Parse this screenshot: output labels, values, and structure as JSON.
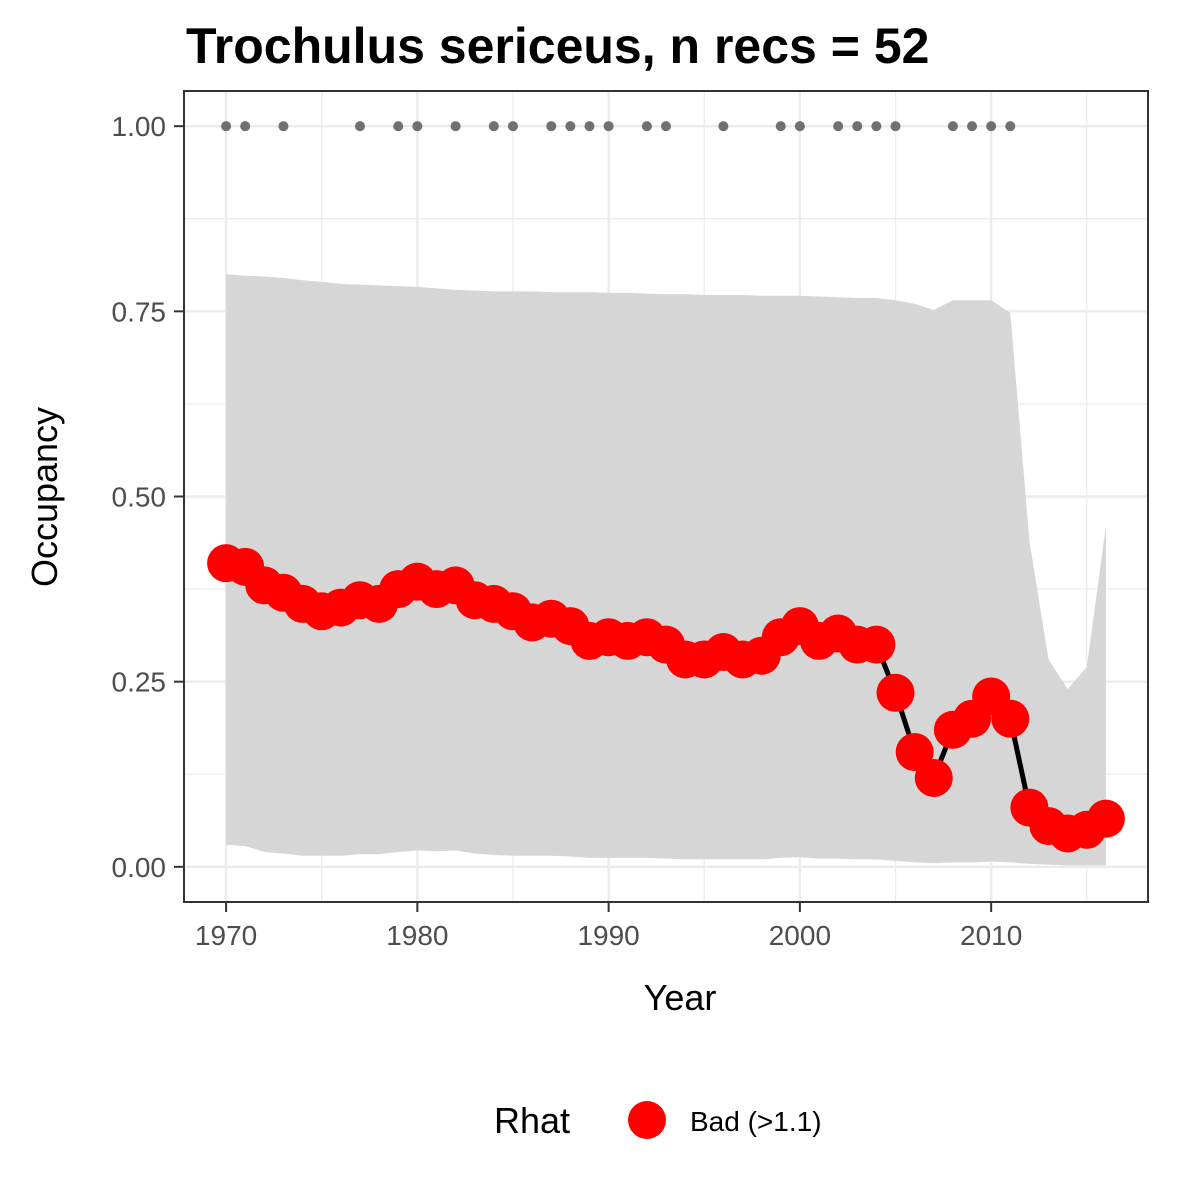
{
  "chart_data": {
    "type": "line",
    "title": "Trochulus sericeus, n recs = 52",
    "xlabel": "Year",
    "ylabel": "Occupancy",
    "xlim": [
      1967.8,
      2018.2
    ],
    "ylim": [
      -0.0475,
      1.0475
    ],
    "x_ticks": [
      1970,
      1980,
      1990,
      2000,
      2010
    ],
    "x_tick_labels": [
      "1970",
      "1980",
      "1990",
      "2000",
      "2010"
    ],
    "y_ticks": [
      0,
      0.25,
      0.5,
      0.75,
      1.0
    ],
    "y_tick_labels": [
      "0.00",
      "0.25",
      "0.50",
      "0.75",
      "1.00"
    ],
    "grid": true,
    "colors": {
      "point": "#ff0000",
      "line": "#000000",
      "ribbon": "#d6d6d6",
      "record": "#707070",
      "grid": "#ebebeb",
      "panel_border": "#333333"
    },
    "series": [
      {
        "years": [
          1970,
          1971,
          1972,
          1973,
          1974,
          1975,
          1976,
          1977,
          1978,
          1979,
          1980,
          1981,
          1982,
          1983,
          1984,
          1985,
          1986,
          1987,
          1988,
          1989,
          1990,
          1991,
          1992,
          1993,
          1994,
          1995,
          1996,
          1997,
          1998,
          1999,
          2000,
          2001,
          2002,
          2003,
          2004,
          2005,
          2006,
          2007,
          2008,
          2009,
          2010,
          2011,
          2012,
          2013,
          2014,
          2015,
          2016
        ],
        "occupancy": [
          0.41,
          0.405,
          0.38,
          0.37,
          0.355,
          0.345,
          0.35,
          0.36,
          0.355,
          0.375,
          0.385,
          0.375,
          0.38,
          0.36,
          0.355,
          0.345,
          0.33,
          0.335,
          0.325,
          0.305,
          0.31,
          0.305,
          0.31,
          0.3,
          0.28,
          0.28,
          0.29,
          0.28,
          0.285,
          0.31,
          0.325,
          0.305,
          0.315,
          0.3,
          0.3,
          0.235,
          0.155,
          0.12,
          0.185,
          0.2,
          0.23,
          0.2,
          0.08,
          0.055,
          0.045,
          0.05,
          0.065
        ],
        "lower": [
          0.03,
          0.028,
          0.02,
          0.018,
          0.015,
          0.015,
          0.015,
          0.017,
          0.017,
          0.02,
          0.022,
          0.021,
          0.022,
          0.018,
          0.016,
          0.015,
          0.015,
          0.015,
          0.014,
          0.012,
          0.012,
          0.012,
          0.012,
          0.011,
          0.01,
          0.01,
          0.01,
          0.01,
          0.01,
          0.012,
          0.013,
          0.011,
          0.011,
          0.01,
          0.01,
          0.008,
          0.006,
          0.005,
          0.006,
          0.006,
          0.007,
          0.006,
          0.004,
          0.003,
          0.002,
          0.002,
          0.002
        ],
        "upper": [
          0.8,
          0.798,
          0.797,
          0.795,
          0.792,
          0.79,
          0.787,
          0.786,
          0.785,
          0.784,
          0.783,
          0.781,
          0.779,
          0.778,
          0.777,
          0.777,
          0.777,
          0.776,
          0.776,
          0.776,
          0.775,
          0.775,
          0.774,
          0.773,
          0.773,
          0.772,
          0.772,
          0.772,
          0.771,
          0.771,
          0.771,
          0.77,
          0.769,
          0.768,
          0.768,
          0.765,
          0.76,
          0.752,
          0.765,
          0.765,
          0.765,
          0.748,
          0.44,
          0.28,
          0.24,
          0.27,
          0.46
        ]
      }
    ],
    "records": {
      "y": 1.0,
      "years": [
        1970,
        1971,
        1973,
        1977,
        1979,
        1980,
        1982,
        1984,
        1985,
        1987,
        1988,
        1989,
        1990,
        1992,
        1993,
        1996,
        1999,
        2000,
        2002,
        2003,
        2004,
        2005,
        2008,
        2009,
        2010,
        2011
      ]
    },
    "legend": {
      "position": "bottom",
      "title": "Rhat",
      "items": [
        {
          "label": "Bad (>1.1)",
          "color": "#ff0000"
        }
      ]
    }
  }
}
